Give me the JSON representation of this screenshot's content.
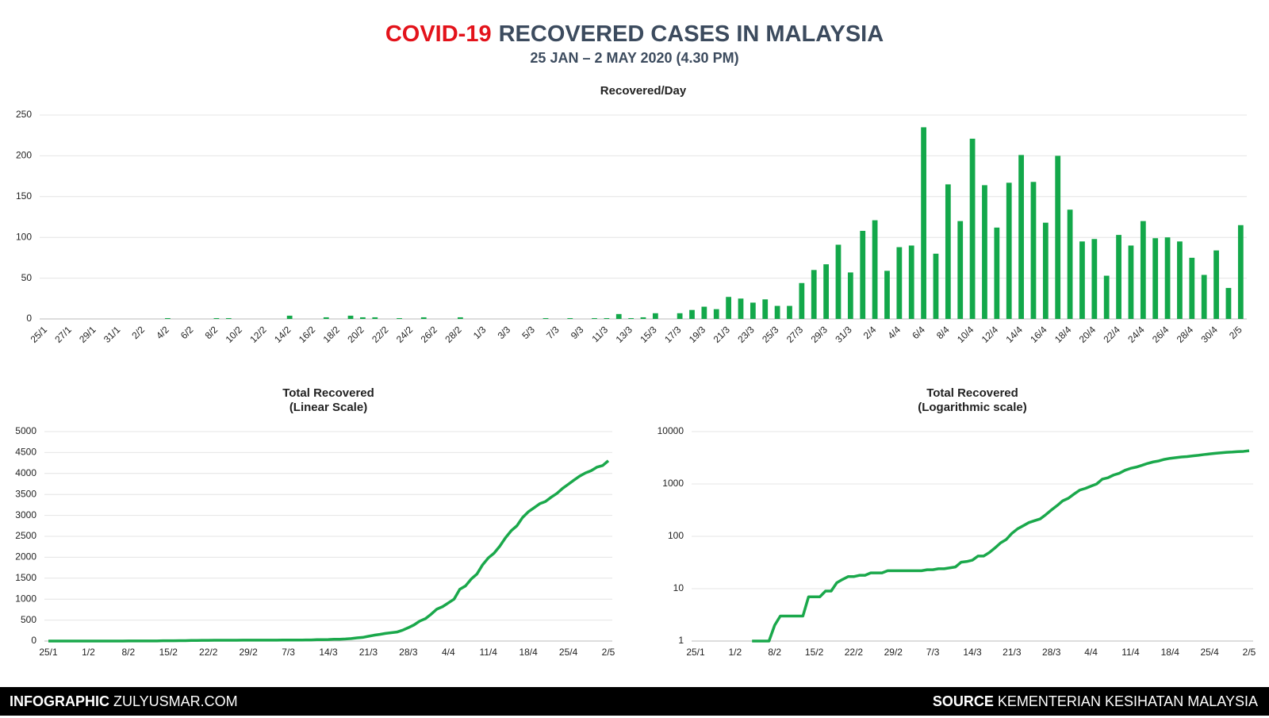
{
  "header": {
    "title_highlight": "COVID-19",
    "title_rest": "RECOVERED CASES IN MALAYSIA",
    "subtitle": "25 JAN – 2 MAY 2020 (4.30 PM)"
  },
  "footer": {
    "left_label": "INFOGRAPHIC",
    "left_text": "ZULYUSMAR.COM",
    "right_label": "SOURCE",
    "right_text": "KEMENTERIAN KESIHATAN MALAYSIA"
  },
  "chart_data": [
    {
      "type": "bar",
      "title": "Recovered/Day",
      "color": "#13a84a",
      "grid": true,
      "ylim": [
        0,
        250
      ],
      "yticks": [
        0,
        50,
        100,
        150,
        200,
        250
      ],
      "categories": [
        "25/1",
        null,
        "27/1",
        null,
        "29/1",
        null,
        "31/1",
        null,
        "2/2",
        null,
        "4/2",
        null,
        "6/2",
        null,
        "8/2",
        null,
        "10/2",
        null,
        "12/2",
        null,
        "14/2",
        null,
        "16/2",
        null,
        "18/2",
        null,
        "20/2",
        null,
        "22/2",
        null,
        "24/2",
        null,
        "26/2",
        null,
        "28/2",
        null,
        "1/3",
        null,
        "3/3",
        null,
        "5/3",
        null,
        "7/3",
        null,
        "9/3",
        null,
        "11/3",
        null,
        "13/3",
        null,
        "15/3",
        null,
        "17/3",
        null,
        "19/3",
        null,
        "21/3",
        null,
        "23/3",
        null,
        "25/3",
        null,
        "27/3",
        null,
        "29/3",
        null,
        "31/3",
        null,
        "2/4",
        null,
        "4/4",
        null,
        "6/4",
        null,
        "8/4",
        null,
        "10/4",
        null,
        "12/4",
        null,
        "14/4",
        null,
        "16/4",
        null,
        "18/4",
        null,
        "20/4",
        null,
        "22/4",
        null,
        "24/4",
        null,
        "26/4",
        null,
        "28/4",
        null,
        "30/4",
        null,
        "2/5"
      ],
      "values": [
        0,
        0,
        0,
        0,
        0,
        0,
        0,
        0,
        0,
        0,
        1,
        0,
        0,
        0,
        1,
        1,
        0,
        0,
        0,
        0,
        4,
        0,
        0,
        2,
        0,
        4,
        2,
        2,
        0,
        1,
        0,
        2,
        0,
        0,
        2,
        0,
        0,
        0,
        0,
        0,
        0,
        1,
        0,
        1,
        0,
        1,
        1,
        6,
        1,
        2,
        7,
        0,
        7,
        11,
        15,
        12,
        27,
        25,
        20,
        24,
        16,
        16,
        44,
        60,
        67,
        91,
        57,
        108,
        121,
        59,
        88,
        90,
        235,
        80,
        165,
        120,
        221,
        164,
        112,
        167,
        201,
        168,
        118,
        200,
        134,
        95,
        98,
        53,
        103,
        90,
        120,
        99,
        100,
        95,
        75,
        54,
        84,
        38,
        115
      ]
    },
    {
      "type": "line",
      "title": "Total Recovered",
      "subtitle": "(Linear Scale)",
      "color": "#1aa84b",
      "grid": true,
      "log_scale": false,
      "ylim": [
        0,
        5000
      ],
      "yticks": [
        0,
        500,
        1000,
        1500,
        2000,
        2500,
        3000,
        3500,
        4000,
        4500,
        5000
      ],
      "categories": [
        "25/1",
        null,
        null,
        null,
        null,
        null,
        null,
        "1/2",
        null,
        null,
        null,
        null,
        null,
        null,
        "8/2",
        null,
        null,
        null,
        null,
        null,
        null,
        "15/2",
        null,
        null,
        null,
        null,
        null,
        null,
        "22/2",
        null,
        null,
        null,
        null,
        null,
        null,
        "29/2",
        null,
        null,
        null,
        null,
        null,
        null,
        "7/3",
        null,
        null,
        null,
        null,
        null,
        null,
        "14/3",
        null,
        null,
        null,
        null,
        null,
        null,
        "21/3",
        null,
        null,
        null,
        null,
        null,
        null,
        "28/3",
        null,
        null,
        null,
        null,
        null,
        null,
        "4/4",
        null,
        null,
        null,
        null,
        null,
        null,
        "11/4",
        null,
        null,
        null,
        null,
        null,
        null,
        "18/4",
        null,
        null,
        null,
        null,
        null,
        null,
        "25/4",
        null,
        null,
        null,
        null,
        null,
        null,
        "2/5"
      ],
      "values": [
        0,
        0,
        0,
        0,
        0,
        0,
        0,
        0,
        0,
        0,
        1,
        1,
        1,
        1,
        2,
        3,
        3,
        3,
        3,
        3,
        7,
        7,
        7,
        9,
        9,
        13,
        15,
        17,
        17,
        18,
        18,
        20,
        20,
        20,
        22,
        22,
        22,
        22,
        22,
        22,
        22,
        23,
        23,
        24,
        24,
        25,
        26,
        32,
        33,
        35,
        42,
        42,
        49,
        60,
        75,
        87,
        114,
        139,
        159,
        183,
        199,
        215,
        259,
        319,
        386,
        477,
        534,
        642,
        763,
        822,
        910,
        1000,
        1235,
        1315,
        1480,
        1600,
        1821,
        1985,
        2097,
        2264,
        2465,
        2633,
        2751,
        2951,
        3085,
        3180,
        3278,
        3331,
        3434,
        3524,
        3644,
        3743,
        3843,
        3938,
        4013,
        4067,
        4151,
        4189,
        4304
      ]
    },
    {
      "type": "line",
      "title": "Total Recovered",
      "subtitle": "(Logarithmic scale)",
      "color": "#1aa84b",
      "grid": true,
      "log_scale": true,
      "ylim": [
        1,
        10000
      ],
      "yticks": [
        1,
        10,
        100,
        1000,
        10000
      ],
      "categories": [
        "25/1",
        null,
        null,
        null,
        null,
        null,
        null,
        "1/2",
        null,
        null,
        null,
        null,
        null,
        null,
        "8/2",
        null,
        null,
        null,
        null,
        null,
        null,
        "15/2",
        null,
        null,
        null,
        null,
        null,
        null,
        "22/2",
        null,
        null,
        null,
        null,
        null,
        null,
        "29/2",
        null,
        null,
        null,
        null,
        null,
        null,
        "7/3",
        null,
        null,
        null,
        null,
        null,
        null,
        "14/3",
        null,
        null,
        null,
        null,
        null,
        null,
        "21/3",
        null,
        null,
        null,
        null,
        null,
        null,
        "28/3",
        null,
        null,
        null,
        null,
        null,
        null,
        "4/4",
        null,
        null,
        null,
        null,
        null,
        null,
        "11/4",
        null,
        null,
        null,
        null,
        null,
        null,
        "18/4",
        null,
        null,
        null,
        null,
        null,
        null,
        "25/4",
        null,
        null,
        null,
        null,
        null,
        null,
        "2/5"
      ],
      "values": [
        null,
        null,
        null,
        null,
        null,
        null,
        null,
        null,
        null,
        null,
        1,
        1,
        1,
        1,
        2,
        3,
        3,
        3,
        3,
        3,
        7,
        7,
        7,
        9,
        9,
        13,
        15,
        17,
        17,
        18,
        18,
        20,
        20,
        20,
        22,
        22,
        22,
        22,
        22,
        22,
        22,
        23,
        23,
        24,
        24,
        25,
        26,
        32,
        33,
        35,
        42,
        42,
        49,
        60,
        75,
        87,
        114,
        139,
        159,
        183,
        199,
        215,
        259,
        319,
        386,
        477,
        534,
        642,
        763,
        822,
        910,
        1000,
        1235,
        1315,
        1480,
        1600,
        1821,
        1985,
        2097,
        2264,
        2465,
        2633,
        2751,
        2951,
        3085,
        3180,
        3278,
        3331,
        3434,
        3524,
        3644,
        3743,
        3843,
        3938,
        4013,
        4067,
        4151,
        4189,
        4304
      ]
    }
  ]
}
